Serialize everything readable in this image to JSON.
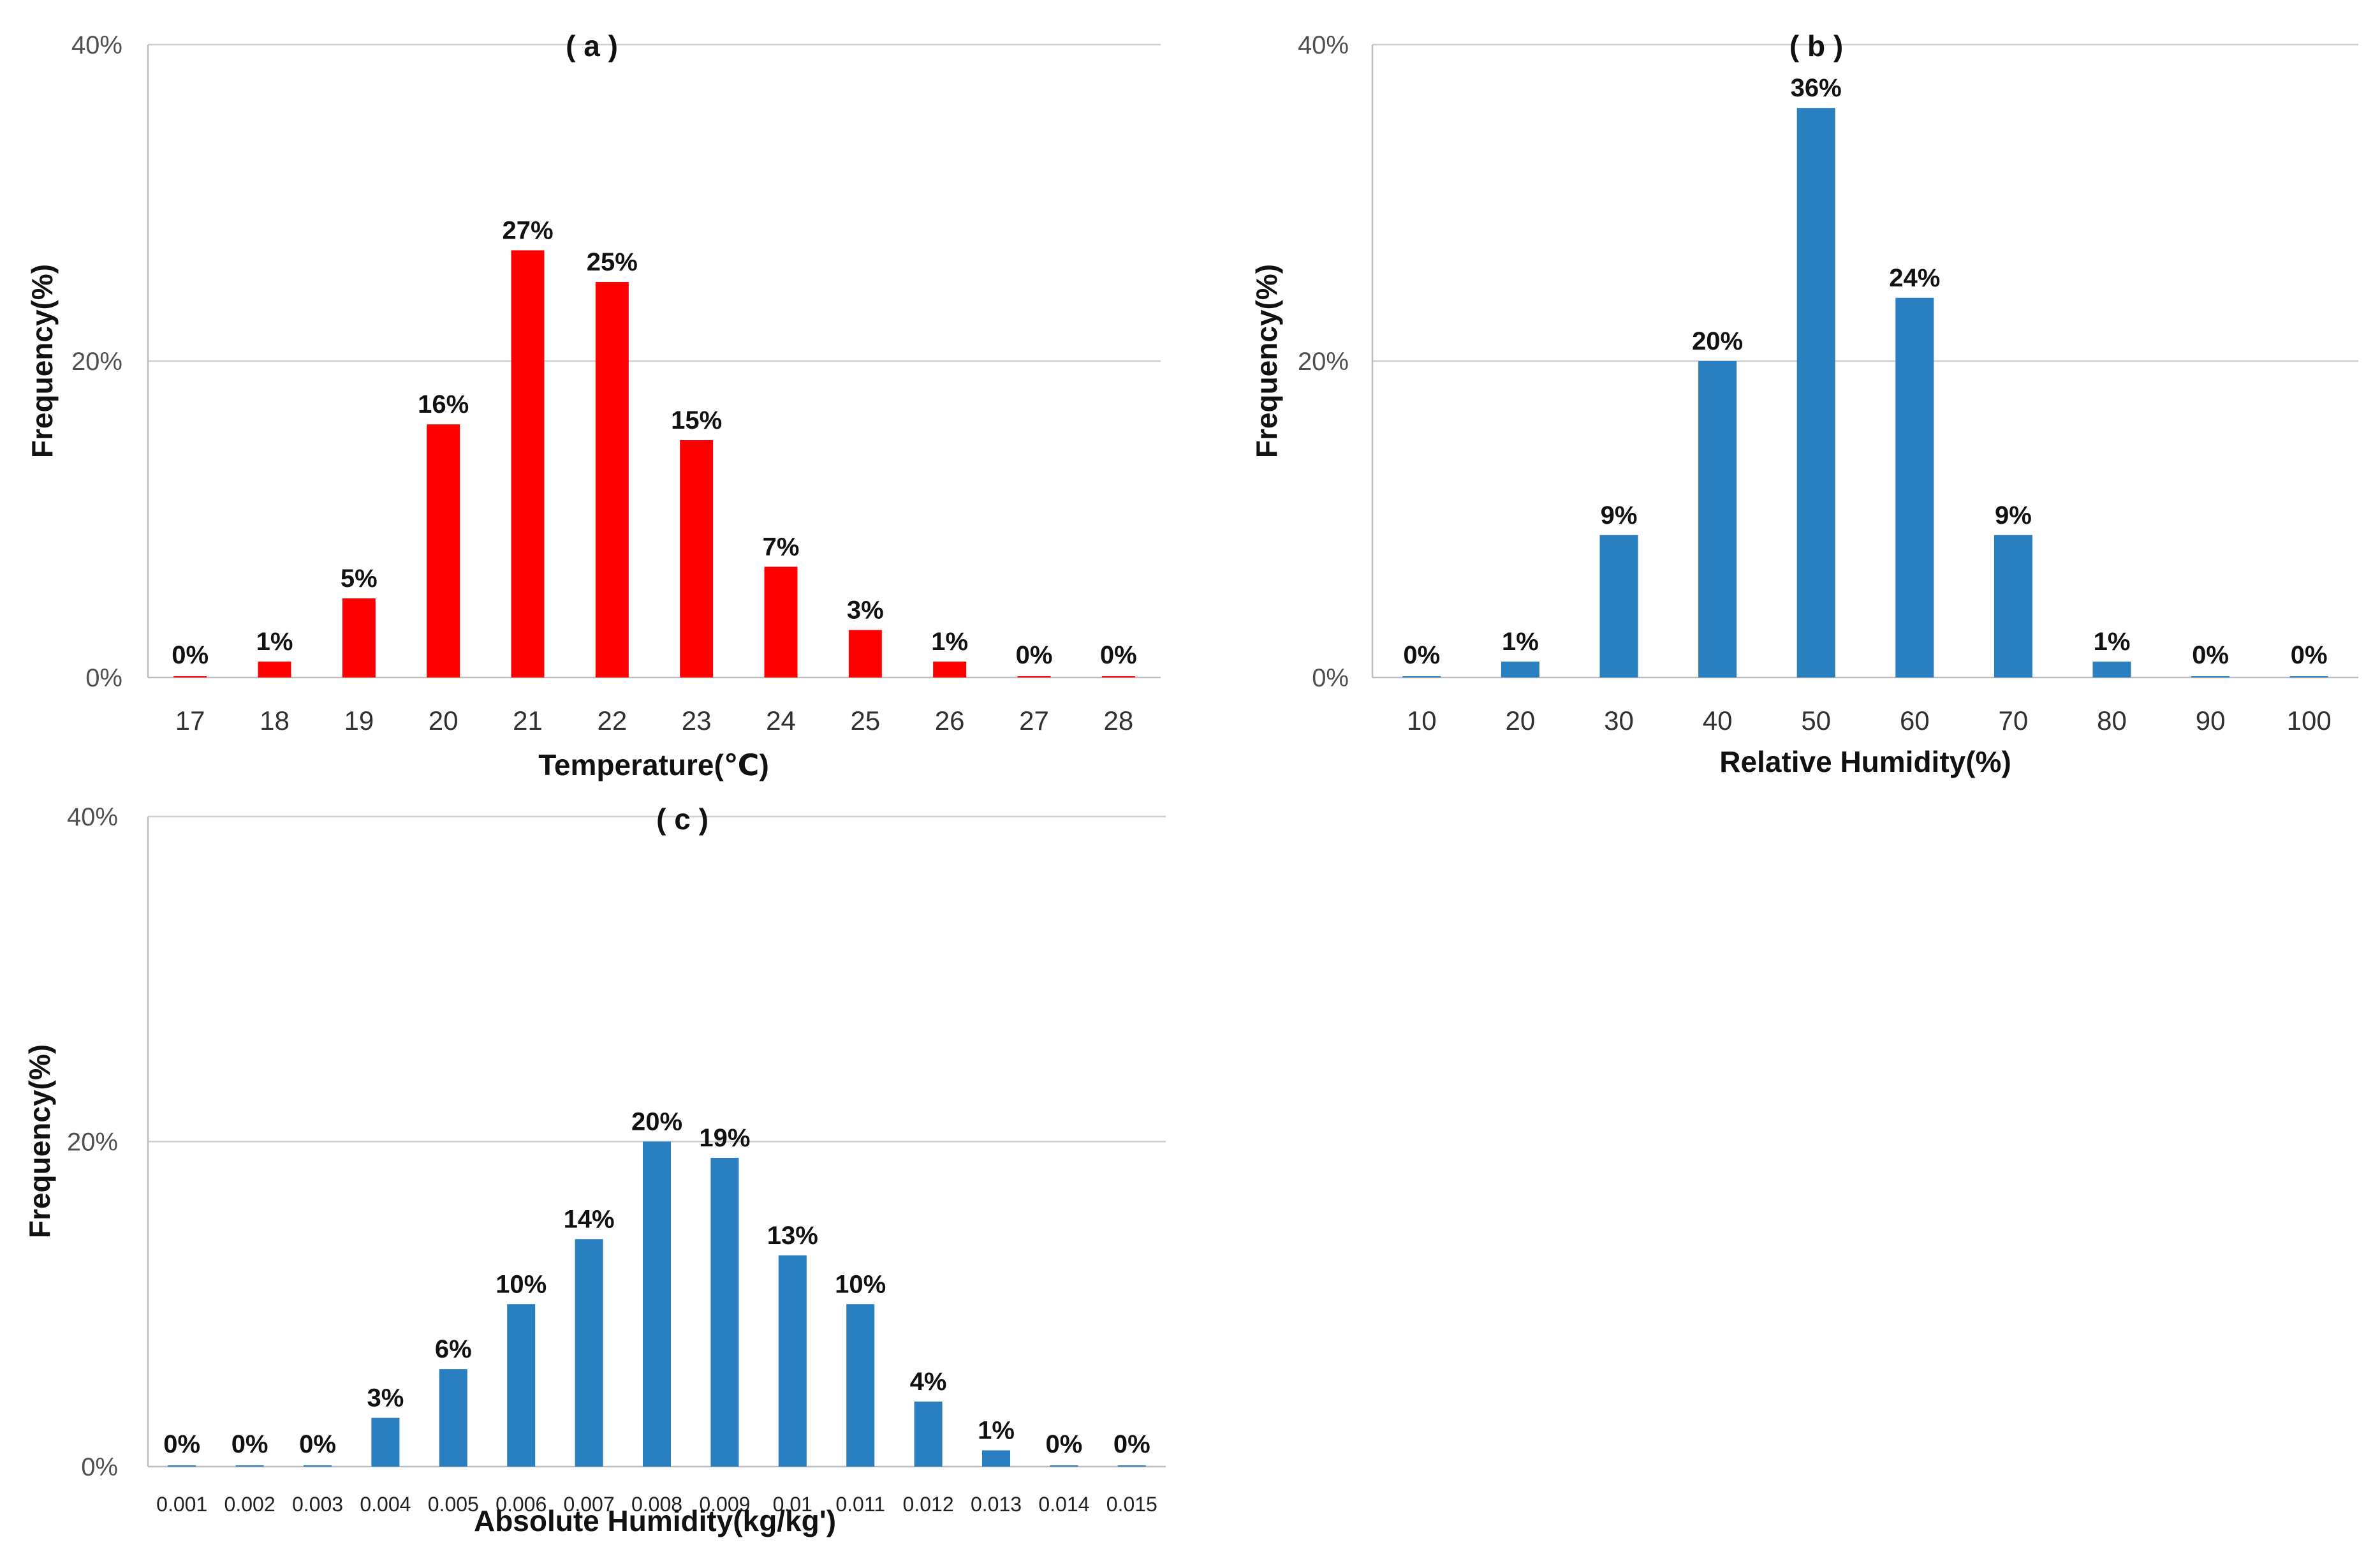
{
  "chart_data": [
    {
      "id": "a",
      "type": "bar",
      "title": "( a )",
      "xlabel": "Temperature(℃)",
      "ylabel": "Frequency(%)",
      "ylim": [
        0,
        40
      ],
      "yticks": [
        "0%",
        "20%",
        "40%"
      ],
      "grid": true,
      "bar_color": "#ff0000",
      "categories": [
        "17",
        "18",
        "19",
        "20",
        "21",
        "22",
        "23",
        "24",
        "25",
        "26",
        "27",
        "28"
      ],
      "values": [
        0,
        1,
        5,
        16,
        27,
        25,
        15,
        7,
        3,
        1,
        0,
        0
      ],
      "data_labels": [
        "0%",
        "1%",
        "5%",
        "16%",
        "27%",
        "25%",
        "15%",
        "7%",
        "3%",
        "1%",
        "0%",
        "0%"
      ]
    },
    {
      "id": "b",
      "type": "bar",
      "title": "( b )",
      "xlabel": "Relative Humidity(%)",
      "ylabel": "Frequency(%)",
      "ylim": [
        0,
        40
      ],
      "yticks": [
        "0%",
        "20%",
        "40%"
      ],
      "grid": true,
      "bar_color": "#2a7fc0",
      "categories": [
        "10",
        "20",
        "30",
        "40",
        "50",
        "60",
        "70",
        "80",
        "90",
        "100"
      ],
      "values": [
        0,
        1,
        9,
        20,
        36,
        24,
        9,
        1,
        0,
        0
      ],
      "data_labels": [
        "0%",
        "1%",
        "9%",
        "20%",
        "36%",
        "24%",
        "9%",
        "1%",
        "0%",
        "0%"
      ]
    },
    {
      "id": "c",
      "type": "bar",
      "title": "( c )",
      "xlabel": "Absolute Humidity(kg/kg')",
      "ylabel": "Frequency(%)",
      "ylim": [
        0,
        40
      ],
      "yticks": [
        "0%",
        "20%",
        "40%"
      ],
      "grid": true,
      "bar_color": "#2a7fc0",
      "categories": [
        "0.001",
        "0.002",
        "0.003",
        "0.004",
        "0.005",
        "0.006",
        "0.007",
        "0.008",
        "0.009",
        "0.01",
        "0.011",
        "0.012",
        "0.013",
        "0.014",
        "0.015"
      ],
      "values": [
        0,
        0,
        0,
        3,
        6,
        10,
        14,
        20,
        19,
        13,
        10,
        4,
        1,
        0,
        0
      ],
      "data_labels": [
        "0%",
        "0%",
        "0%",
        "3%",
        "6%",
        "10%",
        "14%",
        "20%",
        "19%",
        "13%",
        "10%",
        "4%",
        "1%",
        "0%",
        "0%"
      ]
    }
  ]
}
